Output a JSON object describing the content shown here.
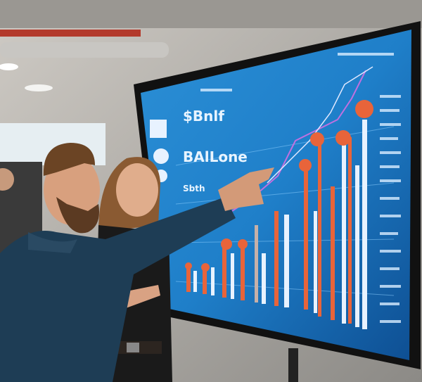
{
  "scene": {
    "description_type": "photo",
    "screen_texts": {
      "headline_1": "$Bnlf",
      "headline_2": "BAlLone",
      "headline_3": "Sbth"
    },
    "colors": {
      "screen_blue": "#1f7fc9",
      "screen_glow": "#4fb3f0",
      "bar_orange": "#e8643a",
      "bar_white": "#e8f2ff",
      "shirt_blue": "#1e3d55",
      "wall": "#d9d6d0"
    }
  }
}
